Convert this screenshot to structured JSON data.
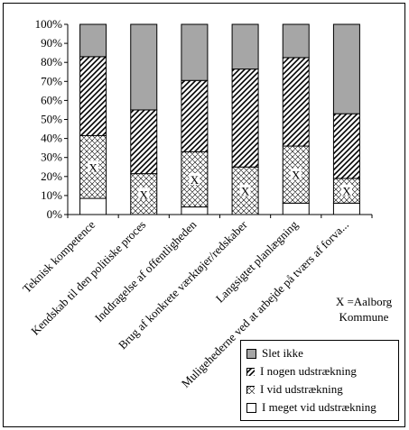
{
  "chart_data": {
    "type": "bar",
    "stacked": true,
    "categories": [
      "Teknisk kompetence",
      "Kendskab til den politiske proces",
      "Inddragelse af offentligheden",
      "Brug af konkrete værktøjer/redskaber",
      "Langsigtet planlægning",
      "Muligehederne ved at arbejde på tværs af forva..."
    ],
    "series": [
      {
        "name": "I meget vid udstrækning",
        "color": "#ffffff",
        "pattern": "none",
        "values": [
          8.5,
          0,
          4,
          0,
          6,
          6
        ]
      },
      {
        "name": "I vid udstrækning",
        "color": "#ffffff",
        "pattern": "cross",
        "values": [
          33,
          21.5,
          29,
          25,
          30,
          13
        ]
      },
      {
        "name": "I nogen udstrækning",
        "color": "#ffffff",
        "pattern": "diag",
        "values": [
          41.5,
          33.5,
          37.5,
          51.5,
          46.5,
          34
        ]
      },
      {
        "name": "Slet ikke",
        "color": "#a6a6a6",
        "pattern": "none",
        "values": [
          17,
          45,
          29.5,
          23.5,
          17.5,
          47
        ]
      }
    ],
    "markers": [
      "X",
      "X",
      "X",
      "X",
      "X",
      "X"
    ],
    "y_ticks": [
      "0%",
      "10%",
      "20%",
      "30%",
      "40%",
      "50%",
      "60%",
      "70%",
      "80%",
      "90%",
      "100%"
    ],
    "ylim": [
      0,
      100
    ],
    "legend_position": "bottom-right"
  },
  "note_lines": [
    "X =Aalborg",
    "Kommune"
  ]
}
